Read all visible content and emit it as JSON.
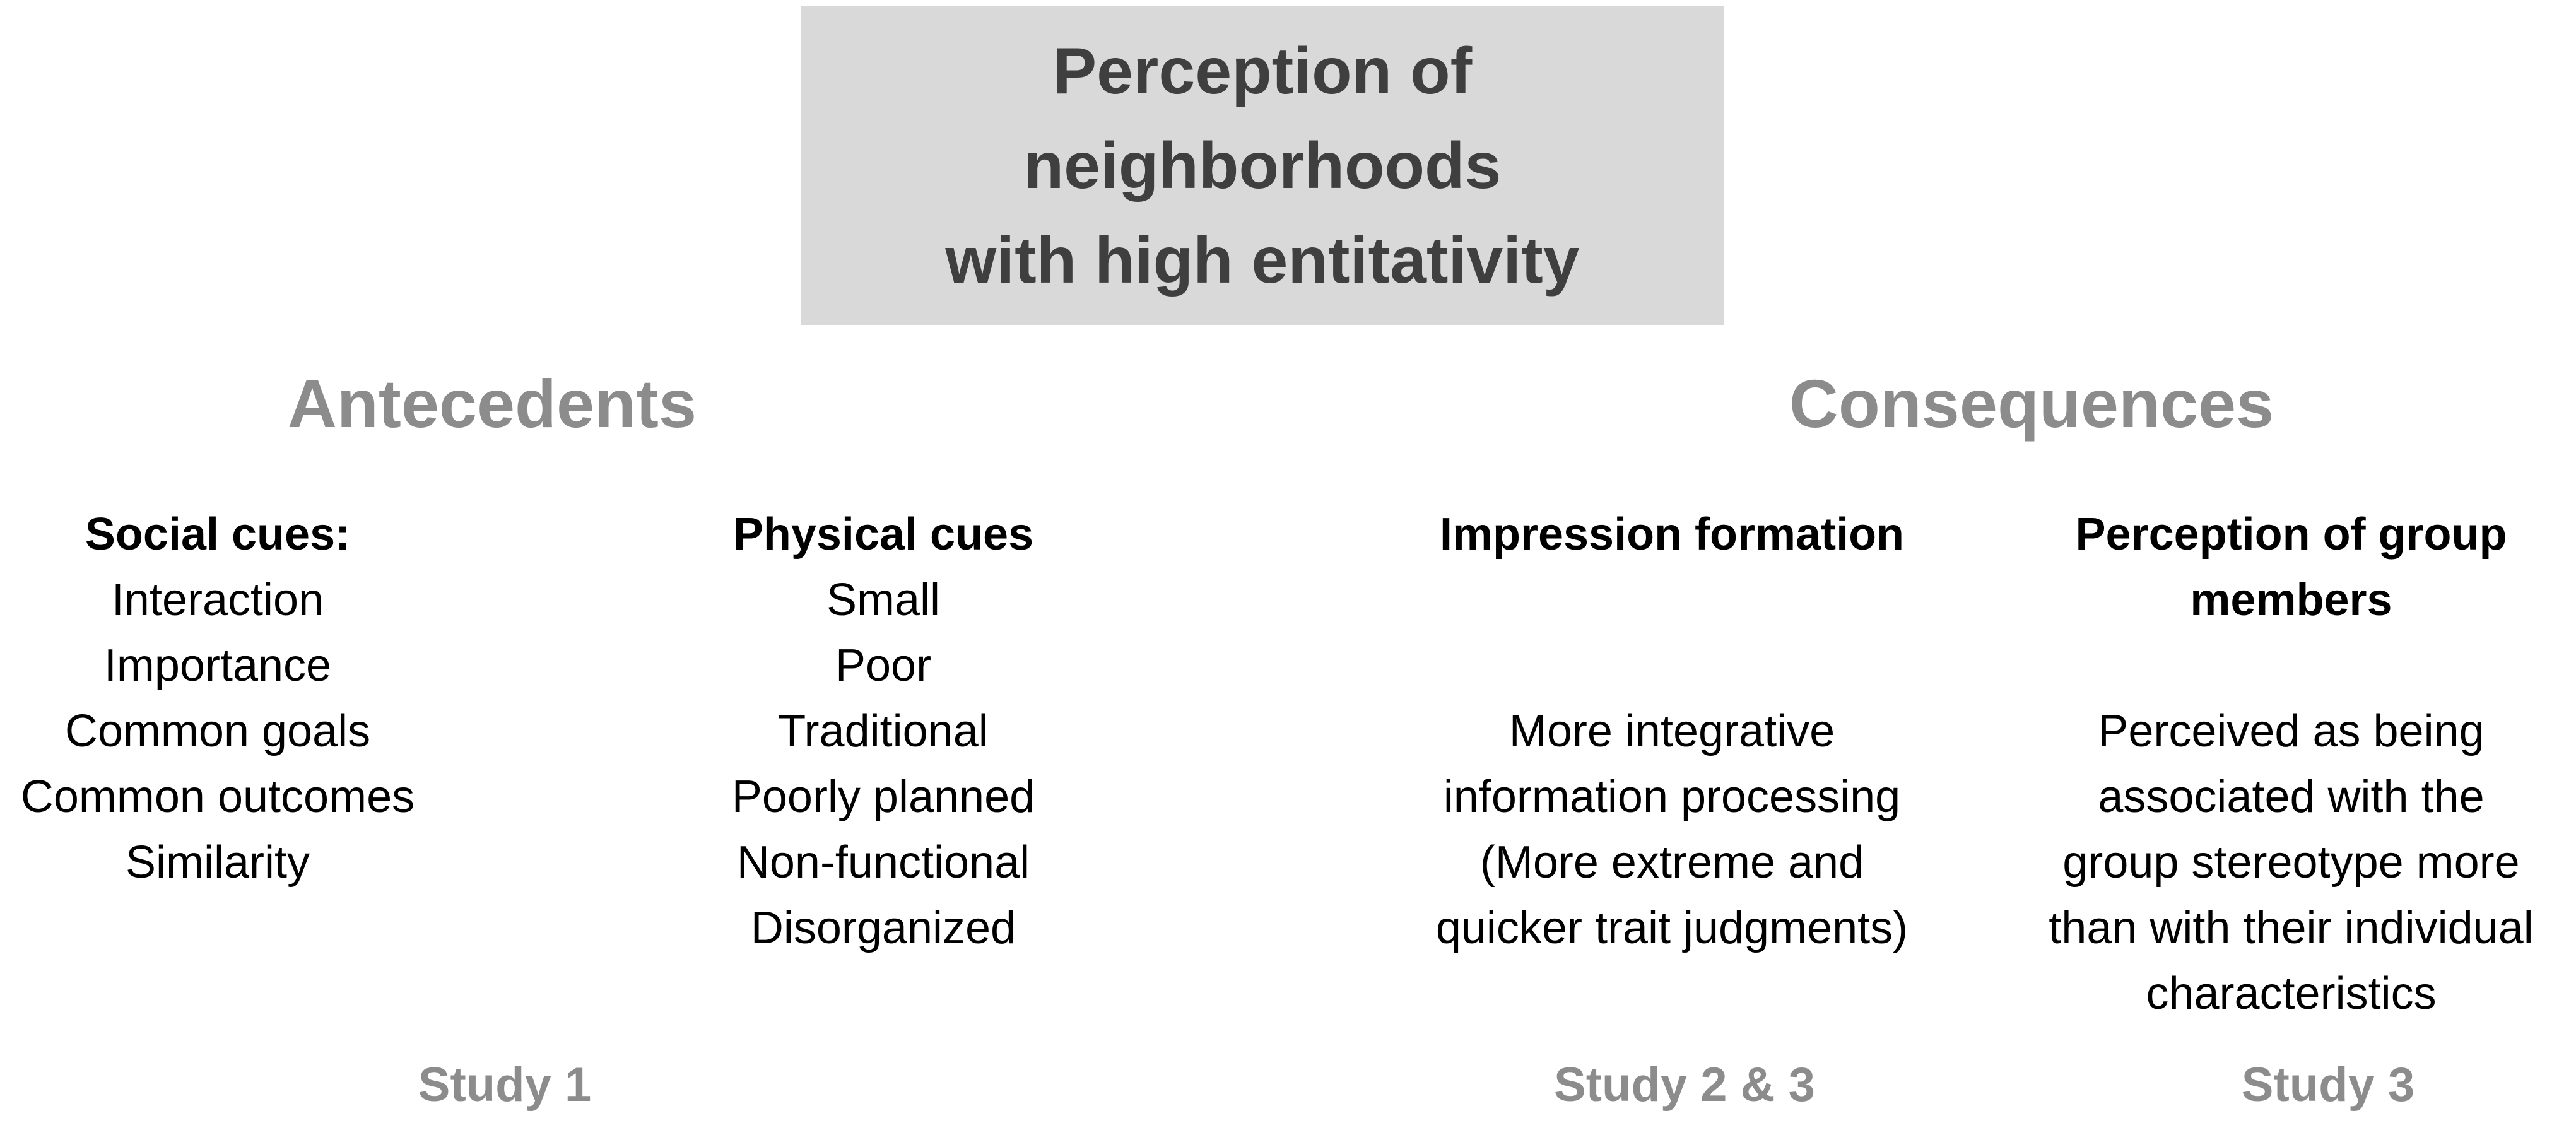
{
  "title": {
    "lines": [
      "Perception of",
      "neighborhoods",
      "with high entitativity"
    ]
  },
  "sections": {
    "antecedents": "Antecedents",
    "consequences": "Consequences"
  },
  "columns": {
    "social_cues": {
      "heading": "Social cues:",
      "items": [
        "Interaction",
        "Importance",
        "Common goals",
        "Common outcomes",
        "Similarity"
      ]
    },
    "physical_cues": {
      "heading": "Physical cues",
      "items": [
        "Small",
        "Poor",
        "Traditional",
        "Poorly planned",
        "Non-functional",
        "Disorganized"
      ]
    },
    "impression_formation": {
      "heading": "Impression formation",
      "body_lines": [
        "More integrative",
        "information processing",
        "(More extreme and",
        "quicker trait judgments)"
      ]
    },
    "perception_members": {
      "heading_lines": [
        "Perception of group",
        "members"
      ],
      "body_lines": [
        "Perceived as being",
        "associated with the",
        "group stereotype more",
        "than with their individual",
        "characteristics"
      ]
    }
  },
  "studies": {
    "study1": "Study 1",
    "study23": "Study 2 & 3",
    "study3": "Study 3"
  }
}
